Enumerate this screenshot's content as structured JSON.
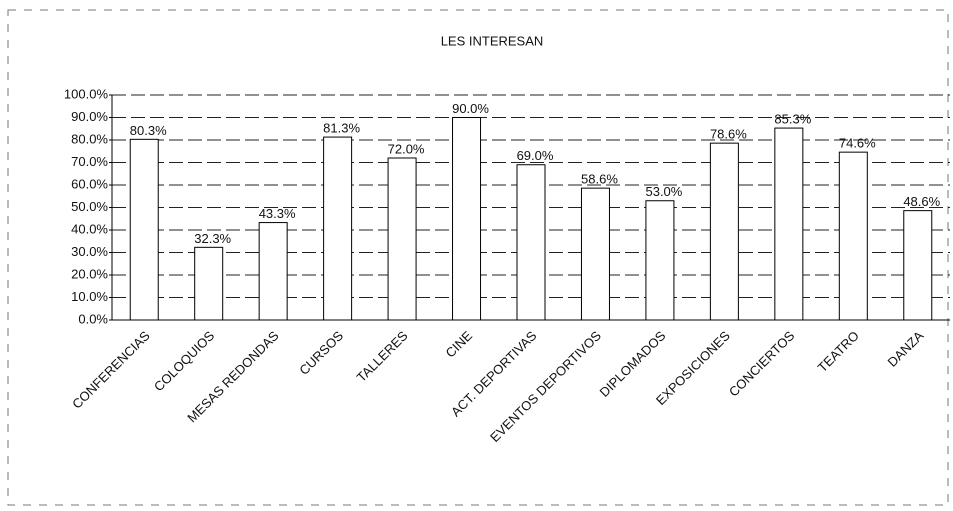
{
  "chart_data": {
    "type": "bar",
    "title": "LES INTERESAN",
    "categories": [
      "CONFERENCIAS",
      "COLOQUIOS",
      "MESAS REDONDAS",
      "CURSOS",
      "TALLERES",
      "CINE",
      "ACT. DEPORTIVAS",
      "EVENTOS DEPORTIVOS",
      "DIPLOMADOS",
      "EXPOSICIONES",
      "CONCIERTOS",
      "TEATRO",
      "DANZA"
    ],
    "values": [
      80.3,
      32.3,
      43.3,
      81.3,
      72.0,
      90.0,
      69.0,
      58.6,
      53.0,
      78.6,
      85.3,
      74.6,
      48.6
    ],
    "value_labels": [
      "80.3%",
      "32.3%",
      "43.3%",
      "81.3%",
      "72.0%",
      "90.0%",
      "69.0%",
      "58.6%",
      "53.0%",
      "78.6%",
      "85.3%",
      "74.6%",
      "48.6%"
    ],
    "color": "#ffffff",
    "ylim": [
      0,
      100
    ],
    "yticks": [
      {
        "value": 0,
        "label": "0.0%"
      },
      {
        "value": 10,
        "label": "10.0%"
      },
      {
        "value": 20,
        "label": "20.0%"
      },
      {
        "value": 30,
        "label": "30.0%"
      },
      {
        "value": 40,
        "label": "40.0%"
      },
      {
        "value": 50,
        "label": "50.0%"
      },
      {
        "value": 60,
        "label": "60.0%"
      },
      {
        "value": 70,
        "label": "70.0%"
      },
      {
        "value": 80,
        "label": "80.0%"
      },
      {
        "value": 90,
        "label": "90.0%"
      },
      {
        "value": 100,
        "label": "100.0%"
      }
    ],
    "grid": true
  }
}
